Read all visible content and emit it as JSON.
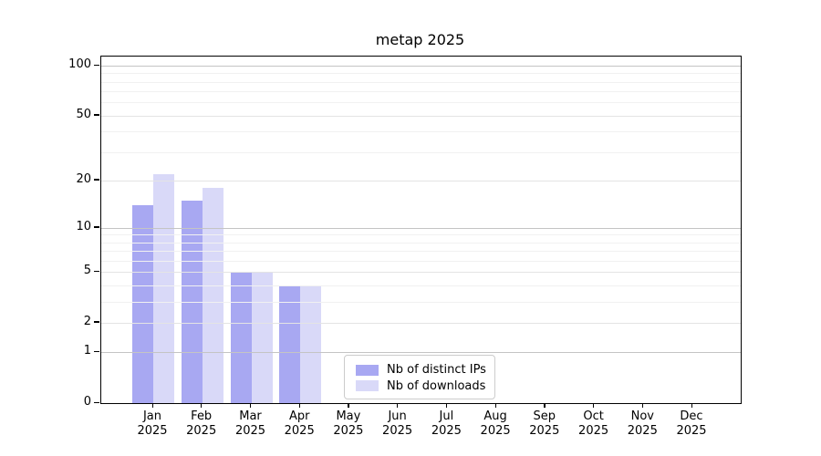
{
  "title": "metap 2025",
  "chart_data": {
    "type": "bar",
    "title": "metap 2025",
    "categories": [
      "Jan",
      "Feb",
      "Mar",
      "Apr",
      "May",
      "Jun",
      "Jul",
      "Aug",
      "Sep",
      "Oct",
      "Nov",
      "Dec"
    ],
    "year_label": "2025",
    "series": [
      {
        "name": "Nb of distinct IPs",
        "color": "#a8a8f2",
        "values": [
          14,
          15,
          5,
          4,
          0,
          0,
          0,
          0,
          0,
          0,
          0,
          0
        ]
      },
      {
        "name": "Nb of downloads",
        "color": "#d9d9f8",
        "values": [
          22,
          18,
          5,
          4,
          0,
          0,
          0,
          0,
          0,
          0,
          0,
          0
        ]
      }
    ],
    "yscale": "log1p",
    "ylim": [
      0,
      113
    ],
    "ytick_values": [
      0,
      1,
      2,
      5,
      10,
      20,
      50,
      100
    ],
    "ytick_labels": [
      "0",
      "1",
      "2",
      "5",
      "10",
      "20",
      "50",
      "100"
    ],
    "major_grid_values": [
      1,
      10,
      100
    ],
    "mid_grid_values": [
      2,
      5,
      20,
      50
    ],
    "minor_grid_values": [
      3,
      4,
      6,
      7,
      8,
      9,
      30,
      40,
      60,
      70,
      80,
      90
    ],
    "grid": "horizontal",
    "legend_position": "lower-center"
  },
  "colors": {
    "bar_distinct_ips": "#a8a8f2",
    "bar_downloads": "#d9d9f8",
    "grid_major": "#c4c4c4",
    "grid_mid": "#e4e4e4",
    "grid_minor": "#f1f1f1",
    "spine": "#000000",
    "legend_border": "#cccccc",
    "text": "#000000"
  }
}
